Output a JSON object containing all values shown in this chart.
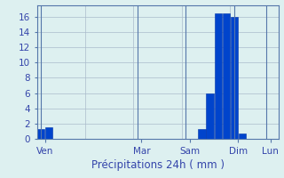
{
  "bar_values": [
    1.3,
    1.5,
    0,
    0,
    0,
    0,
    0,
    0,
    0,
    0,
    0,
    0,
    0,
    0,
    0,
    0,
    0,
    0,
    0,
    0,
    1.3,
    6.0,
    16.5,
    16.5,
    16.0,
    0.7,
    0,
    0,
    0,
    0
  ],
  "n_bars": 30,
  "ylim": [
    0,
    17.5
  ],
  "yticks": [
    0,
    2,
    4,
    6,
    8,
    10,
    12,
    14,
    16
  ],
  "day_labels": [
    "Ven",
    "Mar",
    "Sam",
    "Dim",
    "Lun"
  ],
  "day_tick_positions": [
    0.5,
    12.5,
    18.5,
    24.5,
    28.5
  ],
  "vline_positions": [
    0,
    6,
    12,
    18,
    24,
    30
  ],
  "bar_color": "#0044cc",
  "bar_edge_color": "#0033aa",
  "bg_color": "#ddf0f0",
  "grid_color": "#aabbcc",
  "axis_color": "#5577aa",
  "tick_color": "#3344aa",
  "xlabel": "Précipitations 24h ( mm )",
  "xlabel_color": "#3344aa",
  "xlabel_fontsize": 8.5,
  "tick_fontsize": 7.5
}
